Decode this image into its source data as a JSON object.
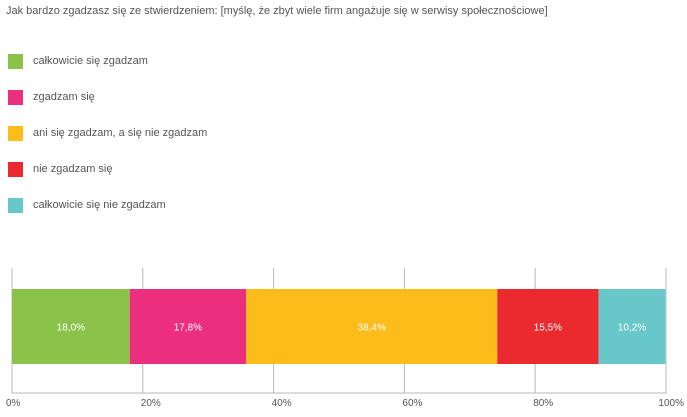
{
  "title": "Jak bardzo zgadzasz się ze stwierdzeniem: [myślę, że zbyt wiele firm angażuje się w serwisy społecznościowe]",
  "chart_data": {
    "type": "bar",
    "orientation": "horizontal-stacked",
    "categories": [
      ""
    ],
    "series": [
      {
        "name": "całkowicie się zgadzam",
        "values": [
          18.0
        ],
        "label": "18,0%",
        "color": "#8bc34a"
      },
      {
        "name": "zgadzam się",
        "values": [
          17.8
        ],
        "label": "17,8%",
        "color": "#ec2e7e"
      },
      {
        "name": "ani się zgadzam, a się nie zgadzam",
        "values": [
          38.4
        ],
        "label": "38,4%",
        "color": "#fcbc1a"
      },
      {
        "name": "nie zgadzam się",
        "values": [
          15.5
        ],
        "label": "15,5%",
        "color": "#ea2a2e"
      },
      {
        "name": "całkowicie się nie zgadzam",
        "values": [
          10.2
        ],
        "label": "10,2%",
        "color": "#67c7c9"
      }
    ],
    "xlim": [
      0,
      100
    ],
    "x_ticks": [
      0,
      20,
      40,
      60,
      80,
      100
    ],
    "x_tick_labels": [
      "0%",
      "20%",
      "40%",
      "60%",
      "80%",
      "100%"
    ],
    "grid": true,
    "legend_position": "top-left"
  }
}
